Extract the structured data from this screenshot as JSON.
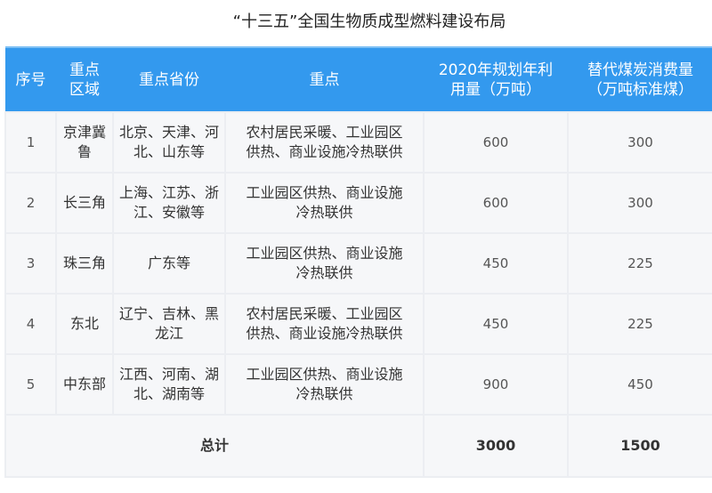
{
  "title": "“十三五”全国生物质成型燃料建设布局",
  "headers": [
    "序号",
    "重点区域",
    "重点省份",
    "重点",
    "2020年规划年利用量（万吨）",
    "替代煤炭消费量（万吨标准煤）"
  ],
  "rows": [
    {
      "no": "1",
      "region": "京津冀鲁",
      "provinces": "北京、天津、河北、山东等",
      "focus": "农村居民采暖、工业园区供热、商业设施冷热联供",
      "usage": "600",
      "coal": "300"
    },
    {
      "no": "2",
      "region": "长三角",
      "provinces": "上海、江苏、浙江、安徽等",
      "focus": "工业园区供热、商业设施冷热联供",
      "usage": "600",
      "coal": "300"
    },
    {
      "no": "3",
      "region": "珠三角",
      "provinces": "广东等",
      "focus": "工业园区供热、商业设施冷热联供",
      "usage": "450",
      "coal": "225"
    },
    {
      "no": "4",
      "region": "东北",
      "provinces": "辽宁、吉林、黑龙江",
      "focus": "农村居民采暖、工业园区供热、商业设施冷热联供",
      "usage": "450",
      "coal": "225"
    },
    {
      "no": "5",
      "region": "中东部",
      "provinces": "江西、河南、湖北、湖南等",
      "focus": "工业园区供热、商业设施冷热联供",
      "usage": "900",
      "coal": "450"
    }
  ],
  "total": {
    "label": "总计",
    "usage": "3000",
    "coal": "1500"
  },
  "colors": {
    "header": "#3399ee",
    "row": "#f6f7f9"
  }
}
